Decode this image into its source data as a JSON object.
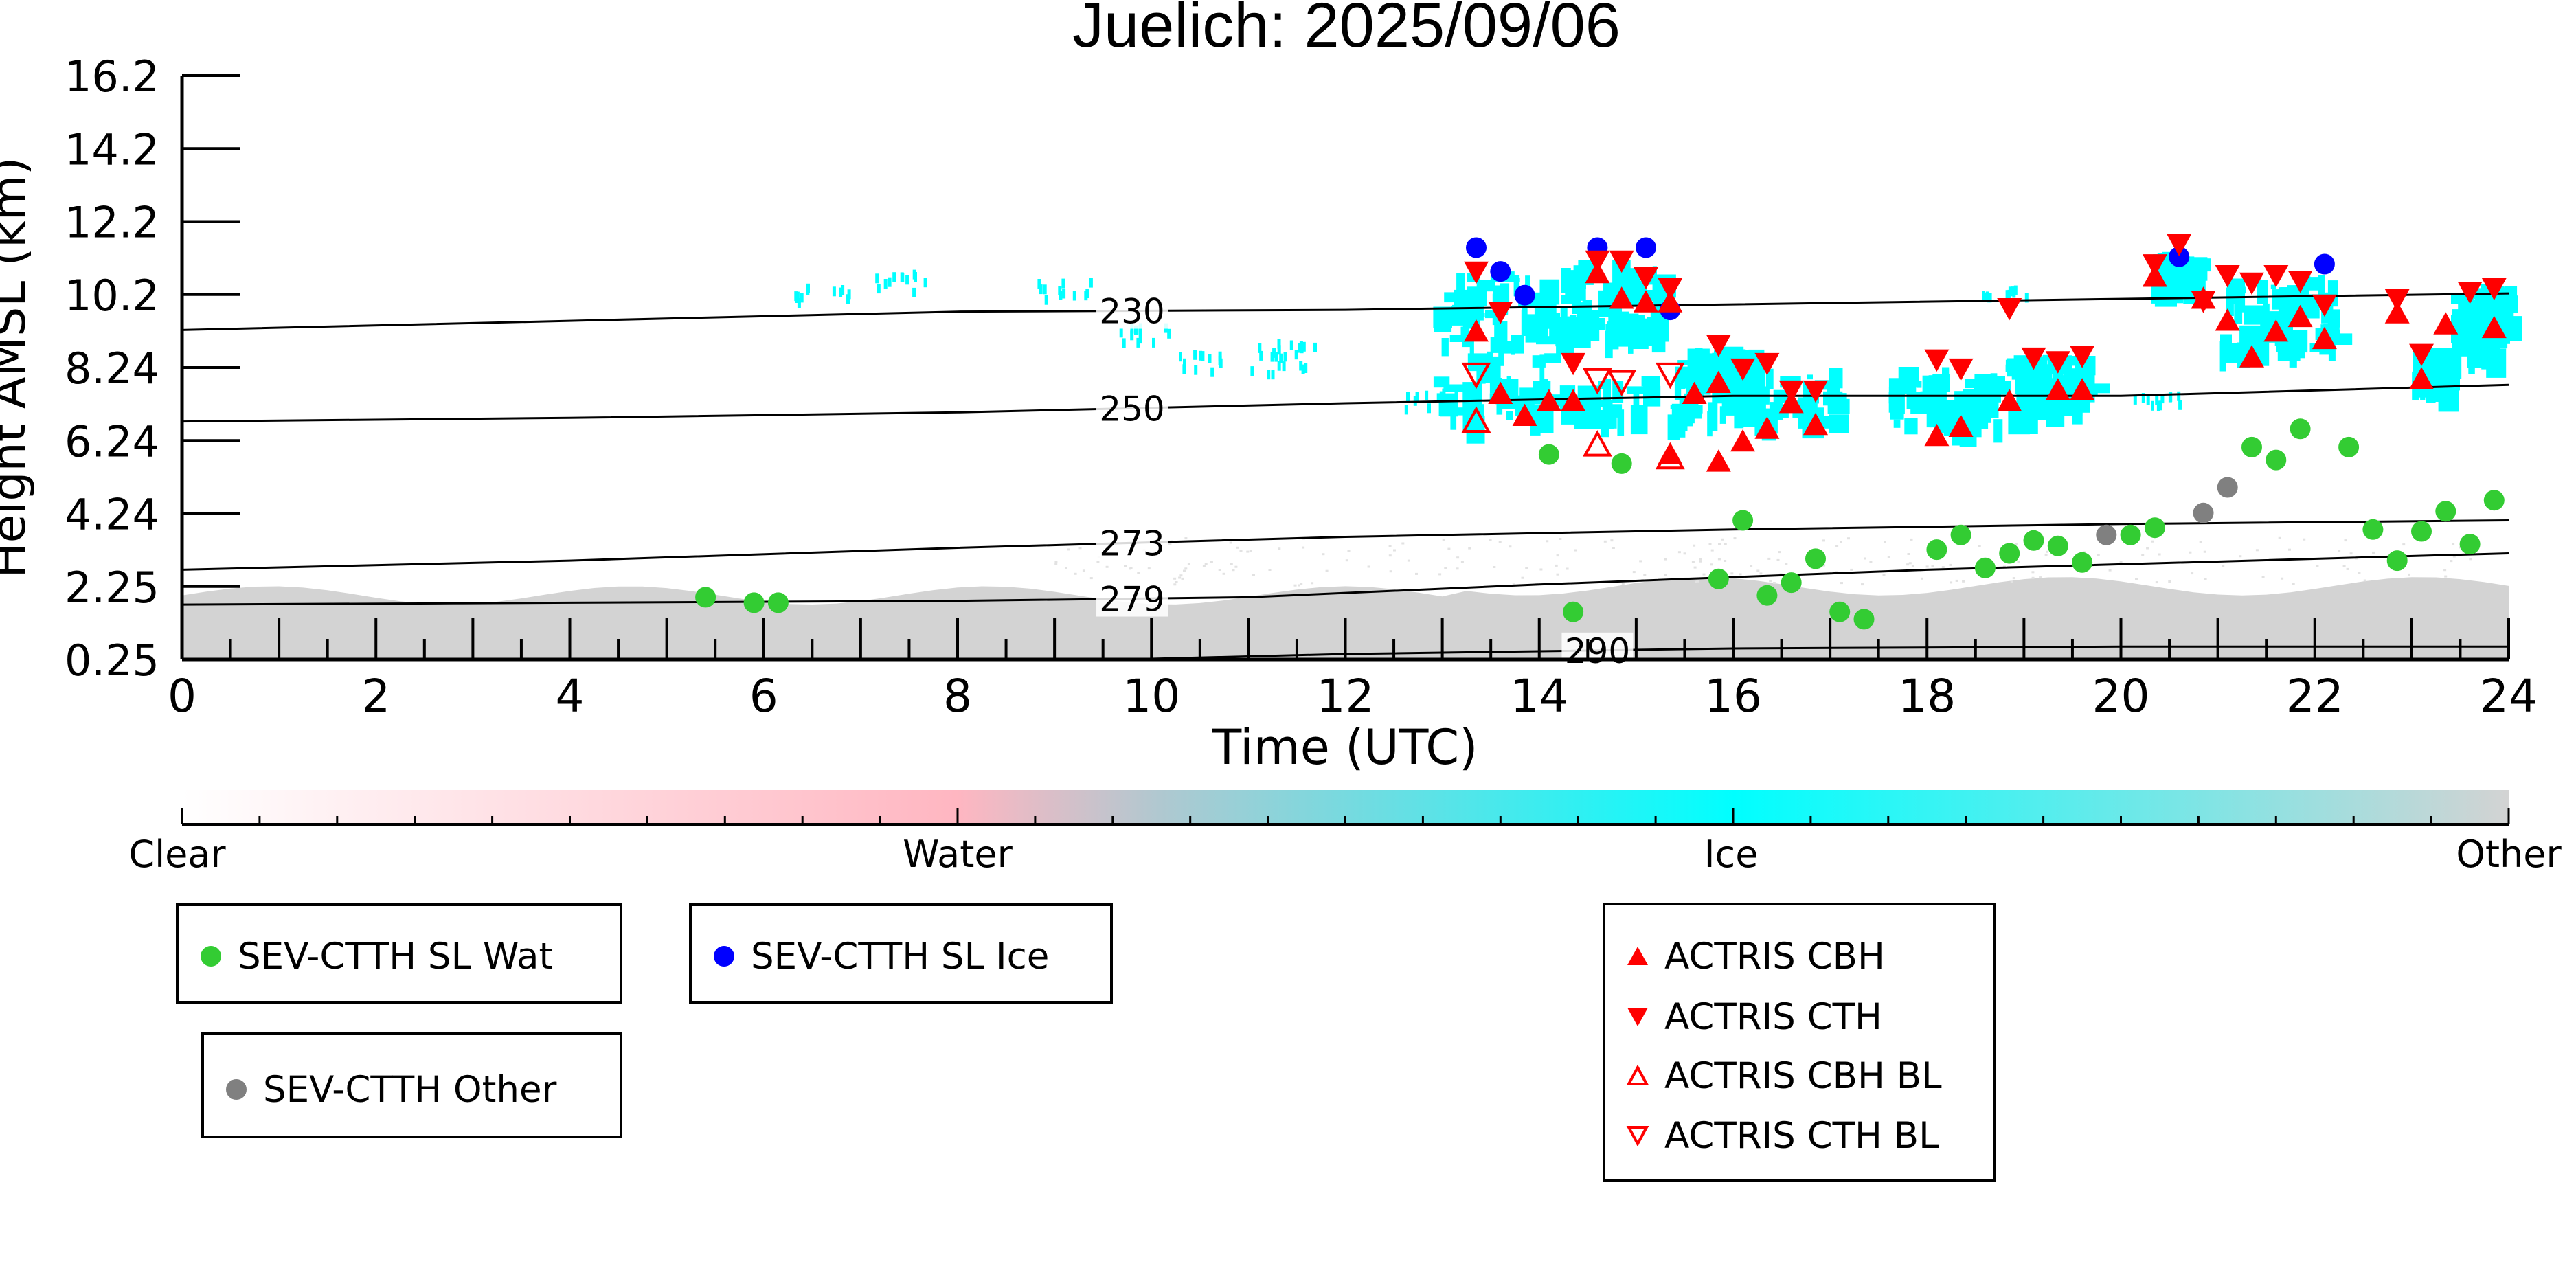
{
  "chart_data": {
    "type": "scatter",
    "title": "Juelich: 2025/09/06",
    "xlabel": "Time (UTC)",
    "ylabel": "Height AMSL (km)",
    "xlim": [
      0,
      24
    ],
    "ylim": [
      0.25,
      16.2
    ],
    "x_ticks": [
      "0",
      "2",
      "4",
      "6",
      "8",
      "10",
      "12",
      "14",
      "16",
      "18",
      "20",
      "22",
      "24"
    ],
    "y_ticks": [
      "16.2",
      "14.2",
      "12.2",
      "10.2",
      "8.24",
      "6.24",
      "4.24",
      "2.25",
      "0.25"
    ],
    "grid": false,
    "colorbar": {
      "labels": [
        "Clear",
        "Water",
        "Ice",
        "Other"
      ],
      "colors": {
        "clear": "#ffffff",
        "water": "#ffb6c1",
        "ice": "#00ffff",
        "other": "#d3d3d3"
      }
    },
    "isotherms": [
      {
        "label": "230",
        "label_x": 9.8,
        "points": [
          [
            0,
            9.25
          ],
          [
            4,
            9.5
          ],
          [
            8,
            9.75
          ],
          [
            12,
            9.8
          ],
          [
            16,
            9.95
          ],
          [
            20,
            10.1
          ],
          [
            24,
            10.25
          ]
        ]
      },
      {
        "label": "250",
        "label_x": 9.8,
        "points": [
          [
            0,
            6.75
          ],
          [
            4,
            6.85
          ],
          [
            8,
            7.0
          ],
          [
            12,
            7.25
          ],
          [
            16,
            7.45
          ],
          [
            20,
            7.45
          ],
          [
            24,
            7.75
          ]
        ]
      },
      {
        "label": "273",
        "label_x": 9.8,
        "points": [
          [
            0,
            2.7
          ],
          [
            4,
            2.95
          ],
          [
            8,
            3.3
          ],
          [
            12,
            3.6
          ],
          [
            16,
            3.8
          ],
          [
            20,
            3.95
          ],
          [
            24,
            4.05
          ]
        ]
      },
      {
        "label": "279",
        "label_x": 9.8,
        "points": [
          [
            0,
            1.75
          ],
          [
            4,
            1.8
          ],
          [
            8,
            1.85
          ],
          [
            11,
            1.95
          ],
          [
            14,
            2.3
          ],
          [
            18,
            2.7
          ],
          [
            24,
            3.15
          ]
        ]
      },
      {
        "label": "290",
        "label_x": 14.6,
        "points": [
          [
            9.7,
            0.25
          ],
          [
            12,
            0.4
          ],
          [
            16,
            0.55
          ],
          [
            20,
            0.6
          ],
          [
            24,
            0.6
          ]
        ]
      }
    ],
    "series": [
      {
        "name": "SEV-CTTH SL Wat",
        "marker": "circle",
        "color": "#33cc33",
        "points": [
          [
            5.4,
            1.95
          ],
          [
            5.9,
            1.8
          ],
          [
            6.15,
            1.8
          ],
          [
            14.1,
            5.85
          ],
          [
            14.35,
            1.55
          ],
          [
            14.85,
            5.6
          ],
          [
            15.85,
            2.45
          ],
          [
            16.1,
            4.05
          ],
          [
            16.35,
            2.0
          ],
          [
            16.6,
            2.35
          ],
          [
            16.85,
            3.0
          ],
          [
            17.1,
            1.55
          ],
          [
            17.35,
            1.35
          ],
          [
            18.1,
            3.25
          ],
          [
            18.35,
            3.65
          ],
          [
            18.6,
            2.75
          ],
          [
            18.85,
            3.15
          ],
          [
            19.1,
            3.5
          ],
          [
            19.35,
            3.35
          ],
          [
            19.6,
            2.9
          ],
          [
            20.1,
            3.65
          ],
          [
            20.35,
            3.85
          ],
          [
            21.35,
            6.05
          ],
          [
            21.6,
            5.7
          ],
          [
            21.85,
            6.55
          ],
          [
            22.35,
            6.05
          ],
          [
            22.6,
            3.8
          ],
          [
            22.85,
            2.95
          ],
          [
            23.1,
            3.75
          ],
          [
            23.35,
            4.3
          ],
          [
            23.6,
            3.4
          ],
          [
            23.85,
            4.6
          ]
        ]
      },
      {
        "name": "SEV-CTTH SL Ice",
        "marker": "circle",
        "color": "#0000ff",
        "points": [
          [
            13.35,
            11.5
          ],
          [
            13.6,
            10.85
          ],
          [
            13.85,
            10.2
          ],
          [
            14.6,
            11.5
          ],
          [
            15.1,
            11.5
          ],
          [
            15.35,
            9.8
          ],
          [
            20.6,
            11.25
          ],
          [
            22.1,
            11.05
          ]
        ]
      },
      {
        "name": "SEV-CTTH Other",
        "marker": "circle",
        "color": "#808080",
        "points": [
          [
            19.85,
            3.65
          ],
          [
            20.85,
            4.25
          ],
          [
            21.1,
            4.95
          ]
        ]
      },
      {
        "name": "ACTRIS CBH",
        "marker": "triangle-up",
        "color": "#ff0000",
        "filled": true,
        "points": [
          [
            13.35,
            9.2
          ],
          [
            13.6,
            7.5
          ],
          [
            13.85,
            6.9
          ],
          [
            14.1,
            7.3
          ],
          [
            14.35,
            7.3
          ],
          [
            14.6,
            10.8
          ],
          [
            14.85,
            10.1
          ],
          [
            15.1,
            10.0
          ],
          [
            15.35,
            10.0
          ],
          [
            15.35,
            5.85
          ],
          [
            15.6,
            7.5
          ],
          [
            15.85,
            5.65
          ],
          [
            15.85,
            7.8
          ],
          [
            16.1,
            6.2
          ],
          [
            16.35,
            6.55
          ],
          [
            16.6,
            7.25
          ],
          [
            16.85,
            6.65
          ],
          [
            18.1,
            6.35
          ],
          [
            18.35,
            6.6
          ],
          [
            18.85,
            7.3
          ],
          [
            19.35,
            7.6
          ],
          [
            19.6,
            7.6
          ],
          [
            20.35,
            10.7
          ],
          [
            20.85,
            10.1
          ],
          [
            21.1,
            9.5
          ],
          [
            21.35,
            8.5
          ],
          [
            21.6,
            9.2
          ],
          [
            21.85,
            9.6
          ],
          [
            22.1,
            9.0
          ],
          [
            22.85,
            9.7
          ],
          [
            23.1,
            7.9
          ],
          [
            23.35,
            9.4
          ],
          [
            23.85,
            9.3
          ]
        ]
      },
      {
        "name": "ACTRIS CTH",
        "marker": "triangle-down",
        "color": "#ff0000",
        "filled": true,
        "points": [
          [
            13.35,
            10.85
          ],
          [
            13.6,
            9.75
          ],
          [
            14.35,
            8.35
          ],
          [
            14.6,
            11.15
          ],
          [
            14.85,
            11.15
          ],
          [
            15.1,
            10.7
          ],
          [
            15.35,
            10.4
          ],
          [
            15.85,
            8.85
          ],
          [
            16.1,
            8.2
          ],
          [
            16.35,
            8.35
          ],
          [
            16.6,
            7.6
          ],
          [
            16.85,
            7.6
          ],
          [
            18.1,
            8.45
          ],
          [
            18.35,
            8.2
          ],
          [
            18.85,
            9.85
          ],
          [
            19.1,
            8.5
          ],
          [
            19.35,
            8.4
          ],
          [
            19.6,
            8.55
          ],
          [
            20.35,
            11.05
          ],
          [
            20.6,
            11.6
          ],
          [
            20.85,
            10.05
          ],
          [
            21.1,
            10.75
          ],
          [
            21.35,
            10.55
          ],
          [
            21.6,
            10.75
          ],
          [
            21.85,
            10.6
          ],
          [
            22.1,
            9.95
          ],
          [
            22.85,
            10.1
          ],
          [
            23.1,
            8.6
          ],
          [
            23.6,
            10.3
          ],
          [
            23.85,
            10.4
          ]
        ]
      },
      {
        "name": "ACTRIS CBH BL",
        "marker": "triangle-up",
        "color": "#ff0000",
        "filled": false,
        "points": [
          [
            13.35,
            6.75
          ],
          [
            14.6,
            6.1
          ],
          [
            15.35,
            5.75
          ]
        ]
      },
      {
        "name": "ACTRIS CTH BL",
        "marker": "triangle-down",
        "color": "#ff0000",
        "filled": false,
        "points": [
          [
            13.35,
            8.05
          ],
          [
            14.6,
            7.9
          ],
          [
            14.85,
            7.85
          ],
          [
            15.35,
            8.05
          ]
        ]
      }
    ]
  }
}
